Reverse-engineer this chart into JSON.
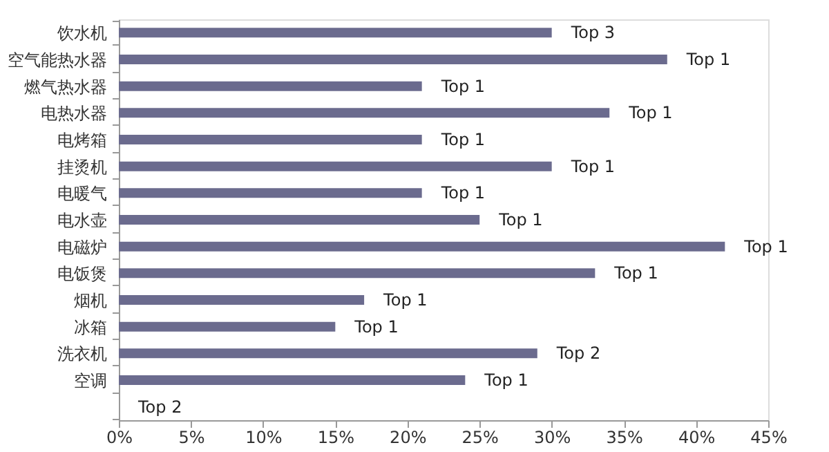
{
  "chart_data": {
    "type": "bar",
    "orientation": "horizontal",
    "categories": [
      "饮水机",
      "空气能热水器",
      "燃气热水器",
      "电热水器",
      "电烤箱",
      "挂烫机",
      "电暖气",
      "电水壶",
      "电磁炉",
      "电饭煲",
      "烟机",
      "冰箱",
      "洗衣机",
      "空调",
      null
    ],
    "values": [
      30,
      38,
      21,
      34,
      21,
      30,
      21,
      25,
      42,
      33,
      17,
      15,
      29,
      24,
      0
    ],
    "value_labels": [
      "Top 3",
      "Top 1",
      "Top 1",
      "Top 1",
      "Top 1",
      "Top 1",
      "Top 1",
      "Top 1",
      "Top 1",
      "Top 1",
      "Top 1",
      "Top 1",
      "Top 2",
      "Top 1",
      "Top 2"
    ],
    "color": "#6b6b8e",
    "xlim": [
      0,
      45
    ],
    "xticks": [
      {
        "value": 0,
        "label": "0%"
      },
      {
        "value": 5,
        "label": "5%"
      },
      {
        "value": 10,
        "label": "10%"
      },
      {
        "value": 15,
        "label": "15%"
      },
      {
        "value": 20,
        "label": "20%"
      },
      {
        "value": 25,
        "label": "25%"
      },
      {
        "value": 30,
        "label": "30%"
      },
      {
        "value": 35,
        "label": "35%"
      },
      {
        "value": 40,
        "label": "40%"
      },
      {
        "value": 45,
        "label": "45%"
      }
    ],
    "grid": false
  }
}
